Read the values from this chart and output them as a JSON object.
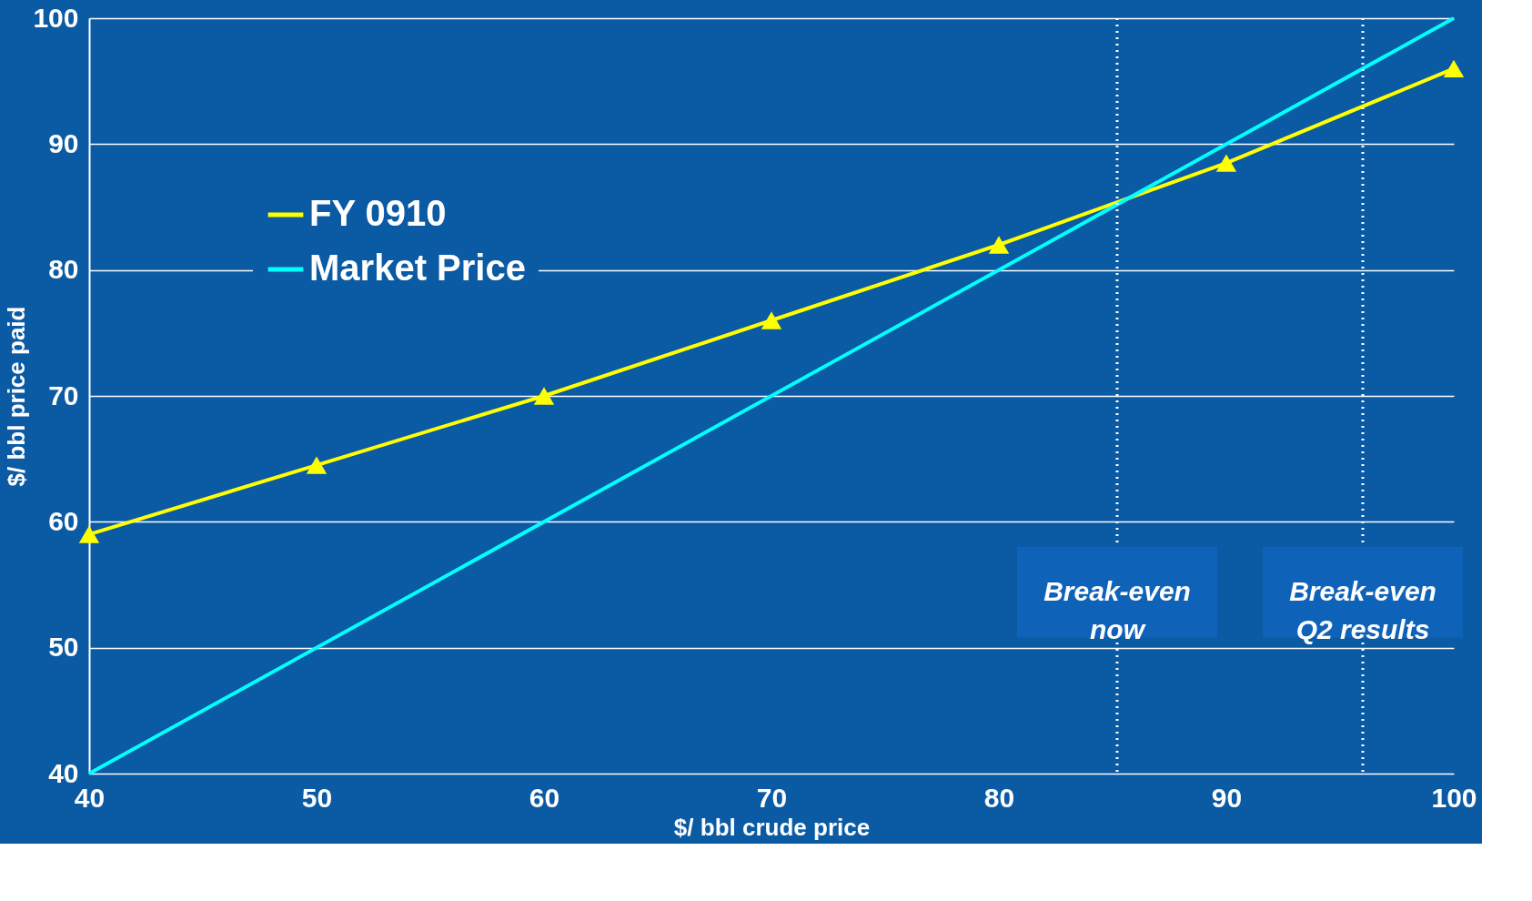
{
  "chart_data": {
    "type": "line",
    "xlabel": "$/ bbl crude price",
    "ylabel": "$/ bbl price paid",
    "x": [
      40,
      50,
      60,
      70,
      80,
      90,
      100
    ],
    "series": [
      {
        "name": "FY 0910",
        "color": "#ffff00",
        "marker": "triangle",
        "values": [
          59,
          64.5,
          70,
          76,
          82,
          88.5,
          96
        ]
      },
      {
        "name": "Market Price",
        "color": "#00ffff",
        "marker": "none",
        "x": [
          40,
          100
        ],
        "values": [
          40,
          100
        ]
      }
    ],
    "xlim": [
      40,
      100
    ],
    "xticks": [
      40,
      50,
      60,
      70,
      80,
      90,
      100
    ],
    "ylim": [
      40,
      100
    ],
    "yticks": [
      40,
      50,
      60,
      70,
      80,
      90,
      100
    ],
    "grid": "y",
    "legend": "top left",
    "ref_lines": [
      {
        "axis": "x",
        "value": 85.2,
        "label": "Break-even now",
        "color": "#ffffff",
        "line_style": "dotted"
      },
      {
        "axis": "x",
        "value": 96,
        "label": "Break-even Q2 results",
        "color": "#ffffff",
        "line_style": "dotted"
      }
    ]
  }
}
